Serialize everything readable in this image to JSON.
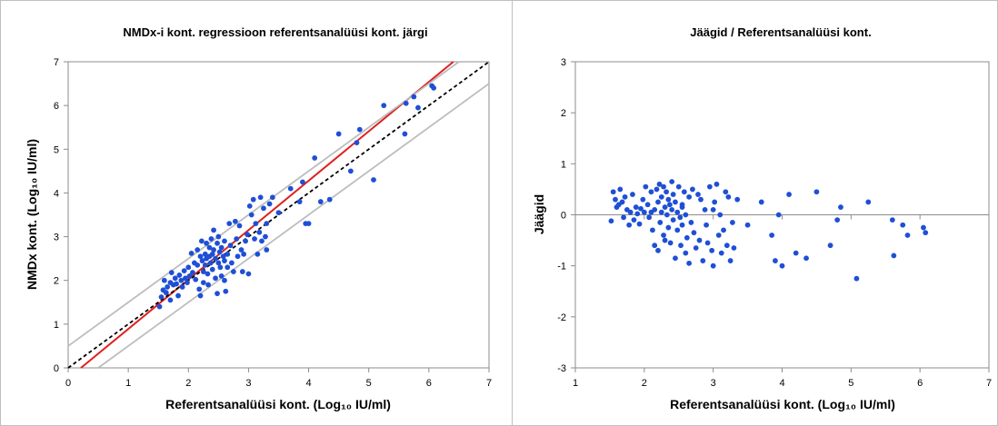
{
  "chart_data": [
    {
      "type": "scatter",
      "title": "NMDx-i kont. regressioon referentsanalüüsi kont. järgi",
      "xlabel": "Referentsanalüüsi kont. (Log₁₀ IU/ml)",
      "ylabel": "NMDx kont. (Log₁₀ IU/ml)",
      "xlim": [
        0,
        7
      ],
      "ylim": [
        0,
        7
      ],
      "xticks": [
        "0",
        "1",
        "2",
        "3",
        "4",
        "5",
        "6",
        "7"
      ],
      "yticks": [
        "0",
        "1",
        "2",
        "3",
        "4",
        "5",
        "6",
        "7"
      ],
      "grid": false,
      "point_color": "#1f4fd6",
      "lines": [
        {
          "kind": "regression",
          "color": "#e0201e",
          "slope": 1.13,
          "intercept": -0.24
        },
        {
          "kind": "identity",
          "color": "#000000",
          "dash": true,
          "slope": 1.0,
          "intercept": 0.0
        },
        {
          "kind": "upper-limit",
          "color": "#bdbdbd",
          "slope": 1.0,
          "intercept": 0.5
        },
        {
          "kind": "lower-limit",
          "color": "#bdbdbd",
          "slope": 1.0,
          "intercept": -0.5
        }
      ],
      "points": [
        [
          1.52,
          1.4
        ],
        [
          1.55,
          1.62
        ],
        [
          1.58,
          1.78
        ],
        [
          1.6,
          2.0
        ],
        [
          1.63,
          1.72
        ],
        [
          1.65,
          1.85
        ],
        [
          1.7,
          1.95
        ],
        [
          1.72,
          2.18
        ],
        [
          1.75,
          1.9
        ],
        [
          1.78,
          2.05
        ],
        [
          1.8,
          1.92
        ],
        [
          1.83,
          1.65
        ],
        [
          1.85,
          2.12
        ],
        [
          1.88,
          2.0
        ],
        [
          1.9,
          1.85
        ],
        [
          1.93,
          2.22
        ],
        [
          1.95,
          2.05
        ],
        [
          1.98,
          1.95
        ],
        [
          2.0,
          2.3
        ],
        [
          2.02,
          2.1
        ],
        [
          2.05,
          2.62
        ],
        [
          2.07,
          2.18
        ],
        [
          2.1,
          2.4
        ],
        [
          2.12,
          2.02
        ],
        [
          2.15,
          2.7
        ],
        [
          2.15,
          2.35
        ],
        [
          2.18,
          1.8
        ],
        [
          2.2,
          2.55
        ],
        [
          2.2,
          1.65
        ],
        [
          2.22,
          2.9
        ],
        [
          2.23,
          2.45
        ],
        [
          2.25,
          2.2
        ],
        [
          2.25,
          1.95
        ],
        [
          2.28,
          2.6
        ],
        [
          2.28,
          2.35
        ],
        [
          2.3,
          2.85
        ],
        [
          2.3,
          2.5
        ],
        [
          2.32,
          2.15
        ],
        [
          2.33,
          1.9
        ],
        [
          2.35,
          2.75
        ],
        [
          2.35,
          2.55
        ],
        [
          2.37,
          2.4
        ],
        [
          2.38,
          2.95
        ],
        [
          2.4,
          2.6
        ],
        [
          2.4,
          2.25
        ],
        [
          2.42,
          3.15
        ],
        [
          2.42,
          2.7
        ],
        [
          2.45,
          2.5
        ],
        [
          2.45,
          2.05
        ],
        [
          2.48,
          2.85
        ],
        [
          2.48,
          1.7
        ],
        [
          2.5,
          2.4
        ],
        [
          2.5,
          3.0
        ],
        [
          2.52,
          2.65
        ],
        [
          2.53,
          2.3
        ],
        [
          2.55,
          2.75
        ],
        [
          2.55,
          2.1
        ],
        [
          2.58,
          2.55
        ],
        [
          2.6,
          2.9
        ],
        [
          2.6,
          2.45
        ],
        [
          2.62,
          1.75
        ],
        [
          2.65,
          2.6
        ],
        [
          2.65,
          2.3
        ],
        [
          2.68,
          3.3
        ],
        [
          2.7,
          2.8
        ],
        [
          2.72,
          2.4
        ],
        [
          2.75,
          2.2
        ],
        [
          2.78,
          3.35
        ],
        [
          2.8,
          2.95
        ],
        [
          2.82,
          2.55
        ],
        [
          2.85,
          3.25
        ],
        [
          2.88,
          2.7
        ],
        [
          2.9,
          2.2
        ],
        [
          2.92,
          2.6
        ],
        [
          2.95,
          2.9
        ],
        [
          2.98,
          3.05
        ],
        [
          3.0,
          2.15
        ],
        [
          3.02,
          3.7
        ],
        [
          3.05,
          3.5
        ],
        [
          3.08,
          3.85
        ],
        [
          3.1,
          2.95
        ],
        [
          3.12,
          3.3
        ],
        [
          3.15,
          2.6
        ],
        [
          3.18,
          3.1
        ],
        [
          3.2,
          3.9
        ],
        [
          3.22,
          2.9
        ],
        [
          3.25,
          3.65
        ],
        [
          3.28,
          3.0
        ],
        [
          3.3,
          2.7
        ],
        [
          3.35,
          3.75
        ],
        [
          3.4,
          3.9
        ],
        [
          3.5,
          3.55
        ],
        [
          3.7,
          4.1
        ],
        [
          3.85,
          3.8
        ],
        [
          3.9,
          4.25
        ],
        [
          3.95,
          3.3
        ],
        [
          4.0,
          3.3
        ],
        [
          4.1,
          4.8
        ],
        [
          4.2,
          3.8
        ],
        [
          4.35,
          3.85
        ],
        [
          4.5,
          5.35
        ],
        [
          4.7,
          4.5
        ],
        [
          4.8,
          5.15
        ],
        [
          4.85,
          5.45
        ],
        [
          5.08,
          4.3
        ],
        [
          5.25,
          6.0
        ],
        [
          5.6,
          5.35
        ],
        [
          5.62,
          6.05
        ],
        [
          5.75,
          6.2
        ],
        [
          5.82,
          5.95
        ],
        [
          6.05,
          6.45
        ],
        [
          6.08,
          6.4
        ],
        [
          1.7,
          1.55
        ],
        [
          2.6,
          2.0
        ],
        [
          3.3,
          3.3
        ]
      ]
    },
    {
      "type": "scatter",
      "title": "Jäägid / Referentsanalüüsi kont.",
      "xlabel": "Referentsanalüüsi kont. (Log₁₀ IU/ml)",
      "ylabel": "Jäägid",
      "xlim": [
        1,
        7
      ],
      "ylim": [
        -3,
        3
      ],
      "xticks": [
        "1",
        "2",
        "3",
        "4",
        "5",
        "6",
        "7"
      ],
      "yticks": [
        "-3",
        "-2",
        "-1",
        "0",
        "1",
        "2",
        "3"
      ],
      "grid": false,
      "point_color": "#1f4fd6",
      "points": [
        [
          1.52,
          -0.12
        ],
        [
          1.55,
          0.45
        ],
        [
          1.58,
          0.3
        ],
        [
          1.6,
          0.15
        ],
        [
          1.63,
          0.2
        ],
        [
          1.65,
          0.5
        ],
        [
          1.68,
          0.25
        ],
        [
          1.7,
          -0.05
        ],
        [
          1.72,
          0.35
        ],
        [
          1.75,
          0.1
        ],
        [
          1.78,
          -0.2
        ],
        [
          1.8,
          0.05
        ],
        [
          1.83,
          0.4
        ],
        [
          1.85,
          -0.1
        ],
        [
          1.88,
          0.15
        ],
        [
          1.9,
          0.02
        ],
        [
          1.93,
          -0.18
        ],
        [
          1.95,
          0.12
        ],
        [
          1.98,
          0.3
        ],
        [
          2.0,
          0.05
        ],
        [
          2.02,
          0.55
        ],
        [
          2.05,
          0.2
        ],
        [
          2.07,
          -0.05
        ],
        [
          2.1,
          0.45
        ],
        [
          2.12,
          -0.3
        ],
        [
          2.15,
          0.1
        ],
        [
          2.15,
          -0.6
        ],
        [
          2.18,
          0.5
        ],
        [
          2.2,
          -0.7
        ],
        [
          2.2,
          0.25
        ],
        [
          2.22,
          0.6
        ],
        [
          2.23,
          -0.15
        ],
        [
          2.25,
          0.35
        ],
        [
          2.25,
          0.05
        ],
        [
          2.28,
          -0.4
        ],
        [
          2.28,
          0.55
        ],
        [
          2.3,
          0.15
        ],
        [
          2.3,
          -0.5
        ],
        [
          2.32,
          0.45
        ],
        [
          2.33,
          0.0
        ],
        [
          2.35,
          -0.25
        ],
        [
          2.35,
          0.3
        ],
        [
          2.37,
          0.2
        ],
        [
          2.38,
          -0.55
        ],
        [
          2.4,
          0.65
        ],
        [
          2.4,
          0.1
        ],
        [
          2.42,
          -0.1
        ],
        [
          2.42,
          0.4
        ],
        [
          2.45,
          -0.85
        ],
        [
          2.45,
          0.25
        ],
        [
          2.48,
          0.05
        ],
        [
          2.48,
          -0.3
        ],
        [
          2.5,
          0.55
        ],
        [
          2.52,
          -0.05
        ],
        [
          2.53,
          -0.6
        ],
        [
          2.55,
          0.15
        ],
        [
          2.55,
          -0.2
        ],
        [
          2.58,
          0.45
        ],
        [
          2.6,
          -0.75
        ],
        [
          2.6,
          0.0
        ],
        [
          2.62,
          -0.45
        ],
        [
          2.65,
          0.35
        ],
        [
          2.65,
          -0.95
        ],
        [
          2.68,
          -0.15
        ],
        [
          2.7,
          0.5
        ],
        [
          2.72,
          -0.35
        ],
        [
          2.75,
          -0.65
        ],
        [
          2.78,
          0.4
        ],
        [
          2.8,
          -0.5
        ],
        [
          2.82,
          0.3
        ],
        [
          2.85,
          -0.9
        ],
        [
          2.88,
          0.1
        ],
        [
          2.9,
          -0.2
        ],
        [
          2.92,
          -0.55
        ],
        [
          2.95,
          0.55
        ],
        [
          2.98,
          -0.7
        ],
        [
          3.0,
          -1.0
        ],
        [
          3.02,
          0.25
        ],
        [
          3.05,
          0.6
        ],
        [
          3.08,
          -0.4
        ],
        [
          3.1,
          0.0
        ],
        [
          3.12,
          -0.75
        ],
        [
          3.15,
          -0.3
        ],
        [
          3.18,
          0.45
        ],
        [
          3.2,
          -0.6
        ],
        [
          3.22,
          0.35
        ],
        [
          3.25,
          -0.9
        ],
        [
          3.28,
          -0.15
        ],
        [
          3.3,
          -0.65
        ],
        [
          3.35,
          0.3
        ],
        [
          3.5,
          -0.2
        ],
        [
          3.7,
          0.25
        ],
        [
          3.85,
          -0.4
        ],
        [
          3.9,
          -0.9
        ],
        [
          3.95,
          0.0
        ],
        [
          4.0,
          -1.0
        ],
        [
          4.1,
          0.4
        ],
        [
          4.2,
          -0.75
        ],
        [
          4.35,
          -0.85
        ],
        [
          4.5,
          0.45
        ],
        [
          4.7,
          -0.6
        ],
        [
          4.8,
          -0.1
        ],
        [
          4.85,
          0.15
        ],
        [
          5.08,
          -1.25
        ],
        [
          5.25,
          0.25
        ],
        [
          5.6,
          -0.1
        ],
        [
          5.62,
          -0.8
        ],
        [
          5.75,
          -0.2
        ],
        [
          5.82,
          -0.4
        ],
        [
          6.05,
          -0.25
        ],
        [
          6.08,
          -0.35
        ],
        [
          2.1,
          0.05
        ],
        [
          2.55,
          0.2
        ],
        [
          3.0,
          0.1
        ]
      ]
    }
  ]
}
